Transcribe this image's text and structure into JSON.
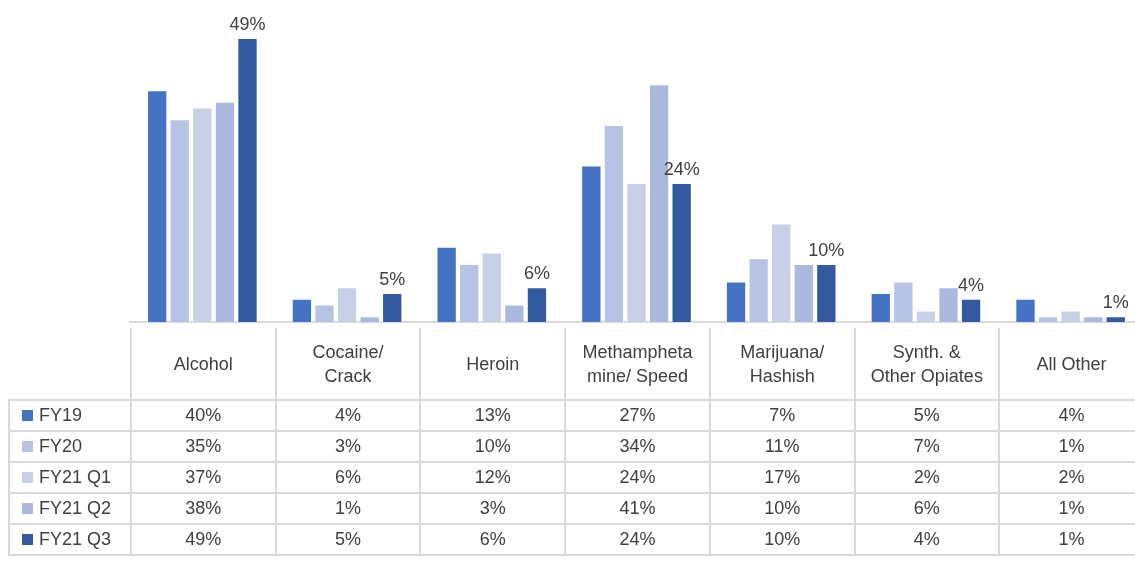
{
  "chart_data": {
    "type": "bar",
    "categories": [
      "Alcohol",
      "Cocaine/ Crack",
      "Heroin",
      "Methamphetamine/ Speed",
      "Marijuana/ Hashish",
      "Synth. & Other Opiates",
      "All Other"
    ],
    "series": [
      {
        "name": "FY19",
        "color": "#4472c4",
        "values": [
          40,
          4,
          13,
          27,
          7,
          5,
          4
        ],
        "value_labels": [
          "40%",
          "4%",
          "13%",
          "27%",
          "7%",
          "5%",
          "4%"
        ]
      },
      {
        "name": "FY20",
        "color": "#b7c3e4",
        "values": [
          35,
          3,
          10,
          34,
          11,
          7,
          1
        ],
        "value_labels": [
          "35%",
          "3%",
          "10%",
          "34%",
          "11%",
          "7%",
          "1%"
        ]
      },
      {
        "name": "FY21 Q1",
        "color": "#c8d0e8",
        "values": [
          37,
          6,
          12,
          24,
          17,
          2,
          2
        ],
        "value_labels": [
          "37%",
          "6%",
          "12%",
          "24%",
          "17%",
          "2%",
          "2%"
        ]
      },
      {
        "name": "FY21 Q2",
        "color": "#abb9de",
        "values": [
          38,
          1,
          3,
          41,
          10,
          6,
          1
        ],
        "value_labels": [
          "38%",
          "1%",
          "3%",
          "41%",
          "10%",
          "6%",
          "1%"
        ]
      },
      {
        "name": "FY21 Q3",
        "color": "#335aa0",
        "values": [
          49,
          5,
          6,
          24,
          10,
          4,
          1
        ],
        "value_labels": [
          "49%",
          "5%",
          "6%",
          "24%",
          "10%",
          "4%",
          "1%"
        ]
      }
    ],
    "annotations": [
      "49%",
      "5%",
      "6%",
      "24%",
      "10%",
      "4%",
      "1%"
    ],
    "legend": "bottom"
  }
}
